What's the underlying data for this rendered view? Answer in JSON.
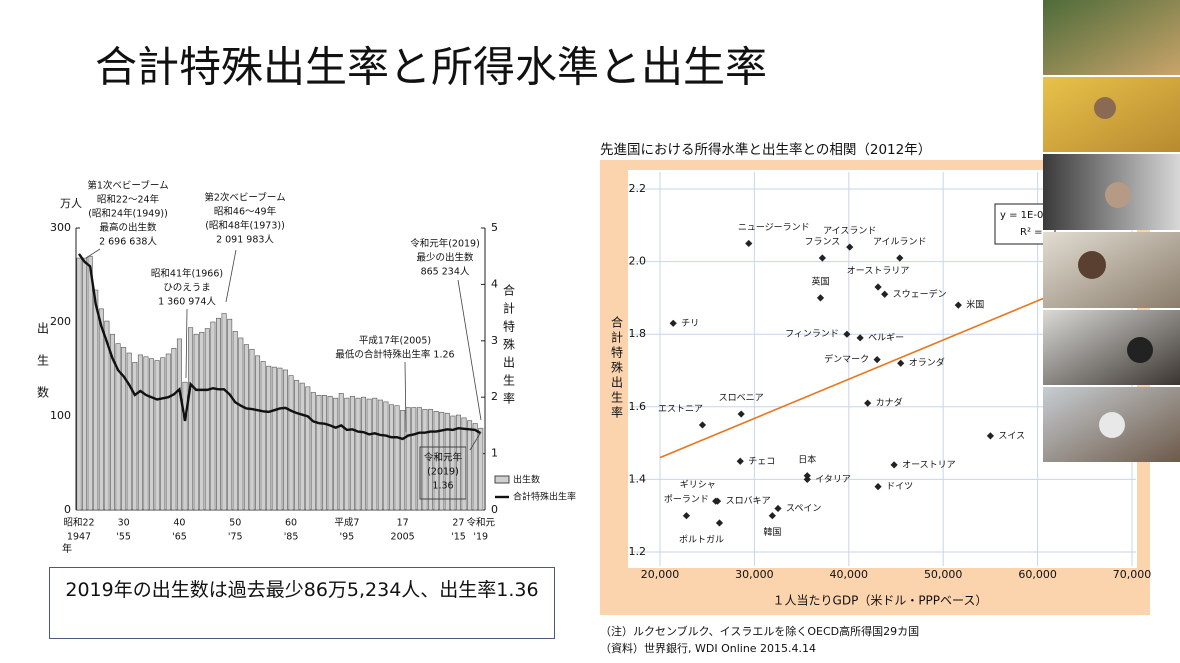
{
  "slide_title": "合計特殊出生率と所得水準と出生率",
  "caption": "2019年の出生数は過去最少86万5,234人、出生率1.36",
  "chart_data": [
    {
      "type": "bar",
      "y_unit": "万人",
      "ylabel": "出生数",
      "y2label": "合計特殊出生率",
      "x_unit": "年",
      "categories": [
        "昭和22",
        null,
        null,
        null,
        null,
        null,
        null,
        null,
        "30",
        null,
        null,
        null,
        null,
        null,
        null,
        null,
        null,
        null,
        "40",
        null,
        null,
        null,
        null,
        null,
        null,
        null,
        null,
        null,
        "50",
        null,
        null,
        null,
        null,
        null,
        null,
        null,
        null,
        null,
        "60",
        null,
        null,
        null,
        null,
        null,
        null,
        null,
        null,
        null,
        "平成7",
        null,
        null,
        null,
        null,
        null,
        null,
        null,
        null,
        null,
        "17",
        null,
        null,
        null,
        null,
        null,
        null,
        null,
        null,
        null,
        "27",
        null,
        null,
        null,
        "令和元"
      ],
      "categories_western": [
        "1947",
        null,
        null,
        null,
        null,
        null,
        null,
        null,
        "'55",
        null,
        null,
        null,
        null,
        null,
        null,
        null,
        null,
        null,
        "'65",
        null,
        null,
        null,
        null,
        null,
        null,
        null,
        null,
        null,
        "'75",
        null,
        null,
        null,
        null,
        null,
        null,
        null,
        null,
        null,
        "'85",
        null,
        null,
        null,
        null,
        null,
        null,
        null,
        null,
        null,
        "'95",
        null,
        null,
        null,
        null,
        null,
        null,
        null,
        null,
        null,
        "2005",
        null,
        null,
        null,
        null,
        null,
        null,
        null,
        null,
        null,
        "'15",
        null,
        null,
        null,
        "'19"
      ],
      "ylim": [
        0,
        300
      ],
      "yticks": [
        0,
        100,
        200,
        300
      ],
      "y2lim": [
        0,
        5
      ],
      "y2ticks": [
        0,
        1,
        2,
        3,
        4,
        5
      ],
      "series": [
        {
          "name": "出生数",
          "type": "bar",
          "color": "#cfcfcf",
          "values": [
            268,
            268,
            270,
            234,
            214,
            201,
            187,
            177,
            173,
            167,
            157,
            165,
            163,
            161,
            159,
            162,
            166,
            172,
            182,
            136,
            194,
            187,
            189,
            193,
            200,
            204,
            209,
            203,
            190,
            183,
            176,
            171,
            164,
            158,
            153,
            152,
            151,
            149,
            143,
            138,
            135,
            131,
            125,
            122,
            122,
            121,
            119,
            124,
            119,
            121,
            119,
            120,
            118,
            119,
            117,
            115,
            112,
            111,
            106,
            109,
            109,
            109,
            107,
            107,
            105,
            104,
            103,
            100,
            101,
            98,
            95,
            92,
            87
          ]
        },
        {
          "name": "合計特殊出生率",
          "type": "line",
          "axis": "y2",
          "color": "#111111",
          "values": [
            4.54,
            4.4,
            4.32,
            3.65,
            3.26,
            2.98,
            2.69,
            2.48,
            2.37,
            2.22,
            2.04,
            2.11,
            2.04,
            2.0,
            1.96,
            1.98,
            2.0,
            2.05,
            2.14,
            1.58,
            2.23,
            2.13,
            2.13,
            2.13,
            2.16,
            2.14,
            2.14,
            2.05,
            1.91,
            1.85,
            1.8,
            1.79,
            1.77,
            1.75,
            1.74,
            1.77,
            1.8,
            1.81,
            1.76,
            1.72,
            1.69,
            1.66,
            1.57,
            1.54,
            1.53,
            1.5,
            1.46,
            1.5,
            1.42,
            1.43,
            1.39,
            1.38,
            1.34,
            1.36,
            1.33,
            1.32,
            1.29,
            1.29,
            1.26,
            1.32,
            1.34,
            1.37,
            1.37,
            1.39,
            1.39,
            1.41,
            1.43,
            1.42,
            1.45,
            1.44,
            1.43,
            1.42,
            1.36
          ]
        }
      ],
      "annotations": [
        {
          "lines": [
            "第1次ベビーブーム",
            "昭和22〜24年",
            "(昭和24年(1949))",
            "最高の出生数",
            "2 696 638人"
          ]
        },
        {
          "lines": [
            "第2次ベビーブーム",
            "昭和46〜49年",
            "(昭和48年(1973))",
            "2 091 983人"
          ]
        },
        {
          "lines": [
            "昭和41年(1966)",
            "ひのえうま",
            "1 360 974人"
          ]
        },
        {
          "lines": [
            "令和元年(2019)",
            "最少の出生数",
            "865 234人"
          ]
        },
        {
          "lines": [
            "平成17年(2005)",
            "最低の合計特殊出生率 1.26"
          ]
        },
        {
          "lines": [
            "令和元年",
            "(2019)",
            "1.36"
          ]
        }
      ]
    },
    {
      "type": "scatter",
      "title": "先進国における所得水準と出生率との相関（2012年）",
      "xlabel": "１人当たりGDP（米ドル・PPPベース）",
      "ylabel": "合計特殊出生率",
      "xlim": [
        20000,
        70000
      ],
      "xticks": [
        {
          "value": 20000,
          "label": "20,000"
        },
        {
          "value": 30000,
          "label": "30,000"
        },
        {
          "value": 40000,
          "label": "40,000"
        },
        {
          "value": 50000,
          "label": "50,000"
        },
        {
          "value": 60000,
          "label": "60,000"
        },
        {
          "value": 70000,
          "label": "70,000"
        }
      ],
      "ylim": [
        1.2,
        2.2
      ],
      "yticks": [
        1.2,
        1.4,
        1.6,
        1.8,
        {
          "value": 2,
          "label": "2.0"
        },
        2.2
      ],
      "grid": true,
      "color": "#222222",
      "point_labels": [
        "ニュージーランド",
        "アイスランド",
        "フランス",
        "アイルランド",
        "英国",
        "オーストラリア",
        "スウェーデン",
        "米国",
        "チリ",
        "フィンランド",
        "ベルギー",
        "デンマーク",
        "オランダ",
        "カナダ",
        "スロベニア",
        "エストニア",
        "スイス",
        "チェコ",
        "日本",
        "イタリア",
        "オーストリア",
        "ドイツ",
        "ギリシャ",
        "スロバキア",
        "ポーランド",
        "スペイン",
        "ポルトガル",
        "韓国"
      ],
      "x": [
        29400,
        40100,
        37200,
        45400,
        37000,
        43100,
        43800,
        51600,
        21400,
        39800,
        41200,
        43000,
        45500,
        42000,
        28600,
        24500,
        55000,
        28500,
        35600,
        35600,
        44800,
        43100,
        25900,
        26100,
        22800,
        32500,
        26300,
        31900
      ],
      "values": [
        2.05,
        2.04,
        2.01,
        2.01,
        1.9,
        1.93,
        1.91,
        1.88,
        1.83,
        1.8,
        1.79,
        1.73,
        1.72,
        1.61,
        1.58,
        1.55,
        1.52,
        1.45,
        1.41,
        1.4,
        1.44,
        1.38,
        1.34,
        1.34,
        1.3,
        1.32,
        1.28,
        1.3
      ],
      "trendline": {
        "color": "#e8761e",
        "x": [
          20000,
          70000
        ],
        "values": [
          1.46,
          2.0
        ]
      },
      "equation": [
        "y = 1E-0",
        "R² ="
      ],
      "notes": [
        "（注）ルクセンブルク、イスラエルを除くOECD高所得国29カ国",
        "（資料）世界銀行, WDI Online 2015.4.14"
      ]
    }
  ]
}
